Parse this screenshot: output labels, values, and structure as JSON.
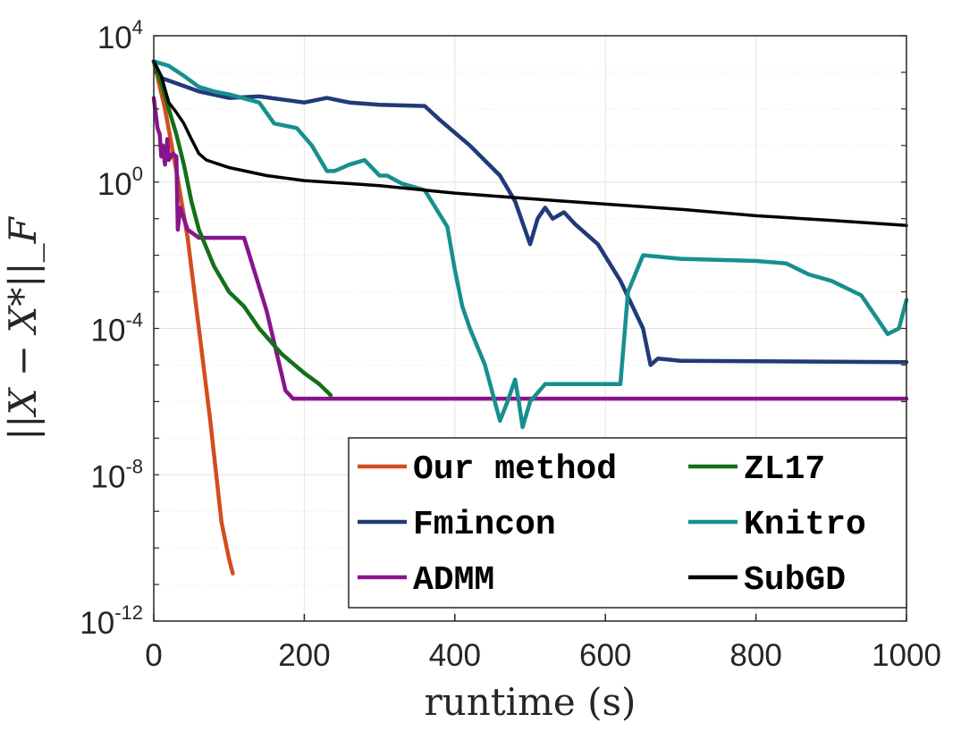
{
  "chart_data": {
    "type": "line",
    "xlabel": "runtime (s)",
    "ylabel": "||X − X*||_F",
    "yscale": "log",
    "xlim": [
      0,
      1000
    ],
    "ylim": [
      1e-12,
      10000.0
    ],
    "x_ticks": [
      0,
      200,
      400,
      600,
      800,
      1000
    ],
    "x_tick_labels": [
      "0",
      "200",
      "400",
      "600",
      "800",
      "1000"
    ],
    "y_ticks": [
      {
        "base": "10",
        "exp": "4",
        "value": 10000.0
      },
      {
        "base": "10",
        "exp": "0",
        "value": 1
      },
      {
        "base": "10",
        "exp": "-4",
        "value": 0.0001
      },
      {
        "base": "10",
        "exp": "-8",
        "value": 1e-08
      },
      {
        "base": "10",
        "exp": "-12",
        "value": 1e-12
      }
    ],
    "grid": true,
    "legend_position": "bottom-right",
    "series": [
      {
        "name": "Our method",
        "color": "#d24e1e",
        "x": [
          0,
          15,
          30,
          45,
          60,
          75,
          90,
          100,
          105
        ],
        "y": [
          2000,
          100,
          2,
          0.03,
          0.0001,
          3e-07,
          5e-10,
          5e-11,
          2e-11
        ]
      },
      {
        "name": "Fmincon",
        "color": "#213a78",
        "x": [
          0,
          10,
          30,
          60,
          100,
          140,
          200,
          230,
          260,
          300,
          360,
          380,
          420,
          460,
          480,
          500,
          510,
          520,
          530,
          545,
          560,
          590,
          620,
          650,
          660,
          670,
          700,
          1000
        ],
        "y": [
          2000,
          700,
          500,
          300,
          200,
          220,
          150,
          200,
          150,
          130,
          120,
          50,
          10,
          1.5,
          0.3,
          0.02,
          0.1,
          0.2,
          0.1,
          0.15,
          0.07,
          0.02,
          0.002,
          0.0001,
          1e-05,
          1.5e-05,
          1.3e-05,
          1.2e-05
        ]
      },
      {
        "name": "ADMM",
        "color": "#88158c",
        "x": [
          0,
          5,
          8,
          10,
          12,
          15,
          18,
          20,
          25,
          30,
          32,
          35,
          40,
          45,
          60,
          80,
          100,
          120,
          150,
          175,
          185,
          200,
          1000
        ],
        "y": [
          200,
          30,
          20,
          5,
          10,
          3,
          15,
          4,
          6,
          5,
          0.05,
          0.2,
          0.1,
          0.05,
          0.03,
          0.03,
          0.03,
          0.03,
          0.0003,
          2e-06,
          1.2e-06,
          1.2e-06,
          1.2e-06
        ]
      },
      {
        "name": "ZL17",
        "color": "#137016",
        "x": [
          0,
          10,
          20,
          30,
          40,
          50,
          60,
          80,
          100,
          120,
          140,
          170,
          200,
          220,
          235
        ],
        "y": [
          2000,
          500,
          100,
          20,
          3,
          0.3,
          0.05,
          0.005,
          0.001,
          0.0004,
          0.0001,
          2e-05,
          6e-06,
          3e-06,
          1.5e-06
        ]
      },
      {
        "name": "Knitro",
        "color": "#178f8f",
        "x": [
          0,
          20,
          40,
          60,
          80,
          100,
          140,
          160,
          190,
          210,
          230,
          240,
          260,
          280,
          300,
          310,
          330,
          360,
          390,
          400,
          410,
          420,
          440,
          460,
          470,
          480,
          485,
          490,
          500,
          520,
          600,
          620,
          630,
          650,
          700,
          800,
          840,
          870,
          900,
          940,
          960,
          975,
          990,
          1000
        ],
        "y": [
          2000,
          1500,
          800,
          400,
          300,
          250,
          150,
          40,
          30,
          10,
          2,
          2,
          3,
          4,
          1.5,
          1.5,
          0.9,
          0.6,
          0.06,
          0.004,
          0.0004,
          0.0001,
          1e-05,
          3e-07,
          1e-06,
          4e-06,
          1e-06,
          2e-07,
          1e-06,
          3e-06,
          3e-06,
          3e-06,
          0.001,
          0.01,
          0.008,
          0.007,
          0.006,
          0.003,
          0.002,
          0.0008,
          0.0002,
          7e-05,
          0.0001,
          0.0006
        ]
      },
      {
        "name": "SubGD",
        "color": "#000000",
        "x": [
          0,
          10,
          20,
          30,
          40,
          50,
          60,
          70,
          100,
          150,
          200,
          300,
          400,
          500,
          600,
          700,
          800,
          900,
          1000
        ],
        "y": [
          2000,
          800,
          150,
          80,
          40,
          15,
          6,
          4,
          2.5,
          1.5,
          1.1,
          0.8,
          0.5,
          0.35,
          0.25,
          0.18,
          0.12,
          0.09,
          0.065
        ]
      }
    ]
  }
}
